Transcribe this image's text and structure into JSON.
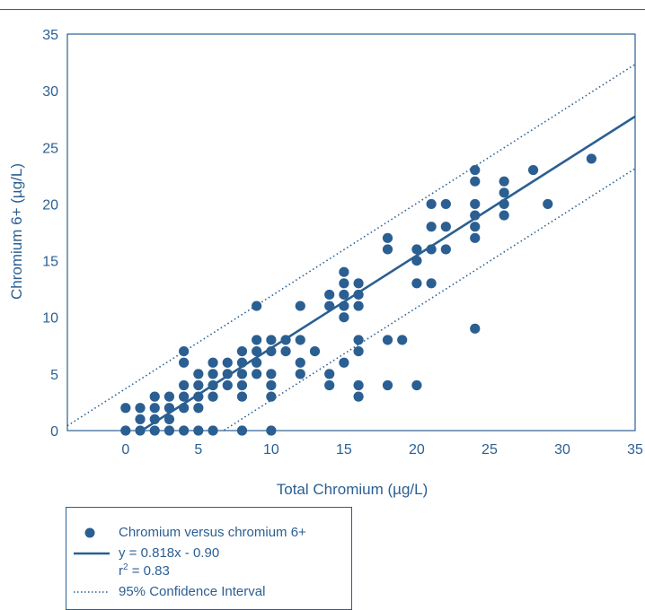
{
  "chart_data": {
    "type": "scatter",
    "xlabel": "Total Chromium (µg/L)",
    "ylabel": "Chromium 6+ (µg/L)",
    "xlim": [
      -4,
      35
    ],
    "ylim": [
      0,
      35
    ],
    "x_ticks": [
      "0",
      "5",
      "10",
      "15",
      "20",
      "25",
      "30",
      "35"
    ],
    "y_ticks": [
      "0",
      "5",
      "10",
      "15",
      "20",
      "25",
      "30",
      "35"
    ],
    "grid": false,
    "legend_position": "bottom-left",
    "colors": {
      "primary": "#2b5f92"
    },
    "series": [
      {
        "name": "Chromium versus chromium 6+",
        "points": [
          [
            0,
            0
          ],
          [
            0,
            2
          ],
          [
            1,
            0
          ],
          [
            1,
            1
          ],
          [
            1,
            2
          ],
          [
            2,
            0
          ],
          [
            2,
            1
          ],
          [
            2,
            2
          ],
          [
            2,
            3
          ],
          [
            3,
            0
          ],
          [
            3,
            1
          ],
          [
            3,
            2
          ],
          [
            3,
            3
          ],
          [
            4,
            0
          ],
          [
            4,
            2
          ],
          [
            4,
            3
          ],
          [
            4,
            4
          ],
          [
            4,
            6
          ],
          [
            4,
            7
          ],
          [
            5,
            0
          ],
          [
            5,
            2
          ],
          [
            5,
            3
          ],
          [
            5,
            4
          ],
          [
            5,
            5
          ],
          [
            6,
            0
          ],
          [
            6,
            3
          ],
          [
            6,
            4
          ],
          [
            6,
            5
          ],
          [
            6,
            6
          ],
          [
            7,
            4
          ],
          [
            7,
            5
          ],
          [
            7,
            6
          ],
          [
            8,
            0
          ],
          [
            8,
            3
          ],
          [
            8,
            4
          ],
          [
            8,
            5
          ],
          [
            8,
            6
          ],
          [
            8,
            7
          ],
          [
            9,
            5
          ],
          [
            9,
            6
          ],
          [
            9,
            7
          ],
          [
            9,
            8
          ],
          [
            9,
            11
          ],
          [
            10,
            0
          ],
          [
            10,
            3
          ],
          [
            10,
            4
          ],
          [
            10,
            5
          ],
          [
            10,
            7
          ],
          [
            10,
            8
          ],
          [
            11,
            7
          ],
          [
            11,
            8
          ],
          [
            12,
            5
          ],
          [
            12,
            6
          ],
          [
            12,
            8
          ],
          [
            12,
            11
          ],
          [
            13,
            7
          ],
          [
            14,
            4
          ],
          [
            14,
            5
          ],
          [
            14,
            11
          ],
          [
            14,
            12
          ],
          [
            15,
            6
          ],
          [
            15,
            10
          ],
          [
            15,
            11
          ],
          [
            15,
            12
          ],
          [
            15,
            13
          ],
          [
            15,
            14
          ],
          [
            16,
            3
          ],
          [
            16,
            4
          ],
          [
            16,
            7
          ],
          [
            16,
            8
          ],
          [
            16,
            11
          ],
          [
            16,
            12
          ],
          [
            16,
            13
          ],
          [
            18,
            4
          ],
          [
            18,
            8
          ],
          [
            18,
            16
          ],
          [
            18,
            17
          ],
          [
            19,
            8
          ],
          [
            20,
            4
          ],
          [
            20,
            13
          ],
          [
            20,
            15
          ],
          [
            20,
            16
          ],
          [
            21,
            13
          ],
          [
            21,
            16
          ],
          [
            21,
            18
          ],
          [
            21,
            20
          ],
          [
            22,
            16
          ],
          [
            22,
            18
          ],
          [
            22,
            20
          ],
          [
            24,
            9
          ],
          [
            24,
            17
          ],
          [
            24,
            18
          ],
          [
            24,
            19
          ],
          [
            24,
            20
          ],
          [
            24,
            22
          ],
          [
            24,
            23
          ],
          [
            26,
            19
          ],
          [
            26,
            20
          ],
          [
            26,
            21
          ],
          [
            26,
            22
          ],
          [
            28,
            23
          ],
          [
            29,
            20
          ],
          [
            32,
            24
          ]
        ]
      }
    ],
    "regression": {
      "slope": 0.818,
      "intercept": -0.9,
      "equation": "y = 0.818x - 0.90",
      "r2_label": "r",
      "r2_sup": "2",
      "r2_value": " = 0.83"
    },
    "confidence_interval": {
      "label": "95% Confidence Interval",
      "offset": 4.6
    }
  }
}
